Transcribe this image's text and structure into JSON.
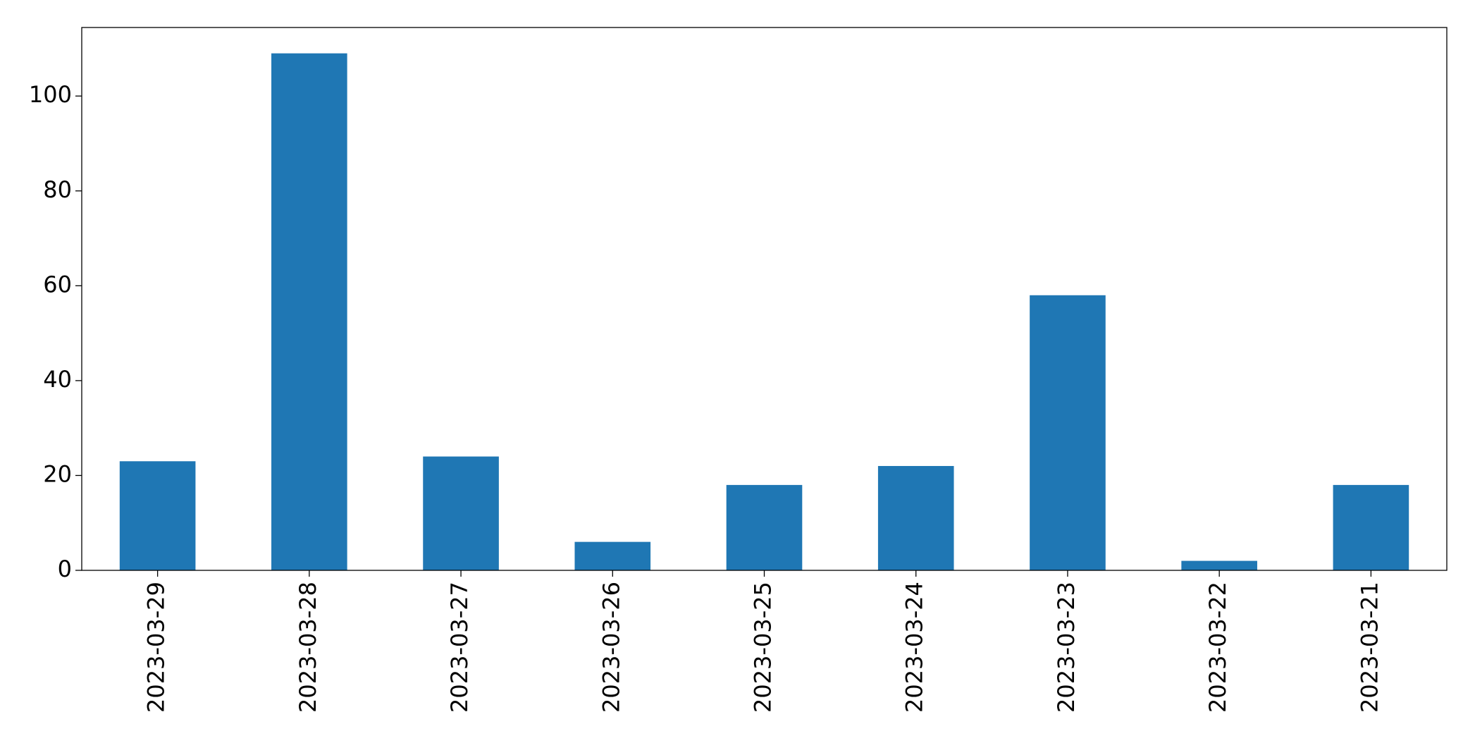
{
  "chart_data": {
    "type": "bar",
    "categories": [
      "2023-03-29",
      "2023-03-28",
      "2023-03-27",
      "2023-03-26",
      "2023-03-25",
      "2023-03-24",
      "2023-03-23",
      "2023-03-22",
      "2023-03-21"
    ],
    "values": [
      23,
      109,
      24,
      6,
      18,
      22,
      58,
      2,
      18
    ],
    "color": "#1f77b4",
    "ylim": [
      0,
      114.45
    ],
    "yticks": [
      0,
      20,
      40,
      60,
      80,
      100
    ],
    "grid": false
  }
}
